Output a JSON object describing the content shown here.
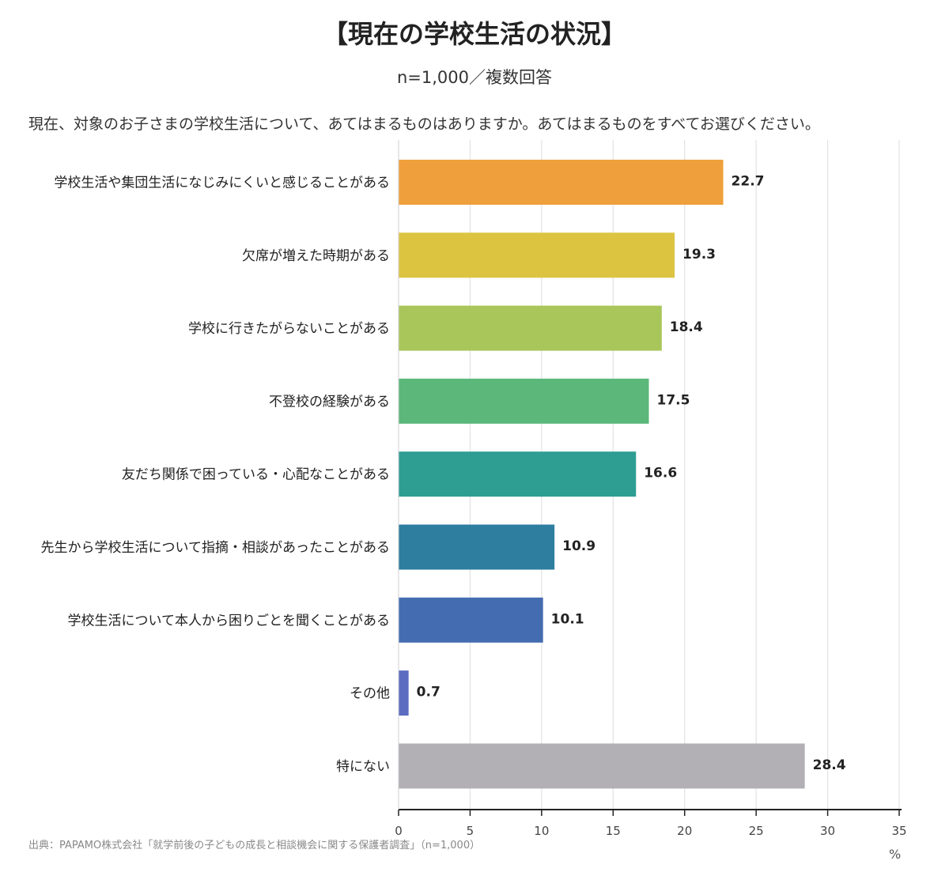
{
  "title": "【現在の学校生活の状況】",
  "subtitle": "n=1,000／複数回答",
  "question": "現在、対象のお子さまの学校生活について、あてはまるものはありますか。あてはまるものをすべてお選びください。",
  "source": "出典：PAPAMO株式会社「就学前後の子どもの成長と相談機会に関する保護者調査」（n=1,000）",
  "unit": "%",
  "chart_data": {
    "type": "bar",
    "orientation": "horizontal",
    "categories": [
      "学校生活や集団生活になじみにくいと感じることがある",
      "欠席が増えた時期がある",
      "学校に行きたがらないことがある",
      "不登校の経験がある",
      "友だち関係で困っている・心配なことがある",
      "先生から学校生活について指摘・相談があったことがある",
      "学校生活について本人から困りごとを聞くことがある",
      "その他",
      "特にない"
    ],
    "values": [
      22.7,
      19.3,
      18.4,
      17.5,
      16.6,
      10.9,
      10.1,
      0.7,
      28.4
    ],
    "value_labels": [
      "22.7",
      "19.3",
      "18.4",
      "17.5",
      "16.6",
      "10.9",
      "10.1",
      "0.7",
      "28.4"
    ],
    "colors": [
      "#EFA03C",
      "#DCC440",
      "#A8C65A",
      "#5BB87A",
      "#2E9E92",
      "#2E7EA0",
      "#446CB0",
      "#5C6CC0",
      "#B2B0B4"
    ],
    "xlim": [
      0,
      35
    ],
    "xticks": [
      "0",
      "5",
      "10",
      "15",
      "20",
      "25",
      "30",
      "35"
    ],
    "xtick_values": [
      0,
      5,
      10,
      15,
      20,
      25,
      30,
      35
    ],
    "grid": true,
    "legend": "none"
  }
}
